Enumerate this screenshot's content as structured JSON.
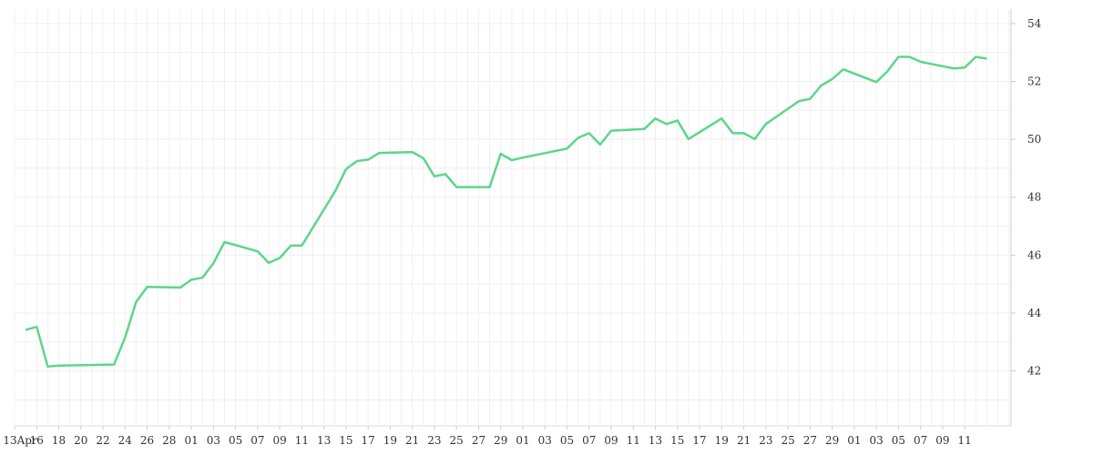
{
  "chart_data": {
    "type": "line",
    "title": "",
    "xlabel": "",
    "ylabel": "",
    "ylim": [
      40.1,
      54.5
    ],
    "y_ticks": [
      42,
      44,
      46,
      48,
      50,
      52,
      54
    ],
    "y_axis_position": "right",
    "grid": true,
    "legend": "none",
    "line_color": "#5cd68a",
    "x_tick_labels": [
      "13Apr",
      "16",
      "18",
      "20",
      "22",
      "24",
      "26",
      "28",
      "01",
      "03",
      "05",
      "07",
      "09",
      "11",
      "13",
      "15",
      "17",
      "19",
      "21",
      "23",
      "25",
      "27",
      "29",
      "01",
      "03",
      "05",
      "07",
      "09",
      "11",
      "13",
      "15",
      "17",
      "19",
      "21",
      "23",
      "25",
      "27",
      "29",
      "01",
      "03",
      "05",
      "07",
      "09",
      "11"
    ],
    "x": [
      "2025-04-14",
      "2025-04-15",
      "2025-04-16",
      "2025-04-17",
      "2025-04-22",
      "2025-04-23",
      "2025-04-24",
      "2025-04-25",
      "2025-04-28",
      "2025-04-29",
      "2025-04-30",
      "2025-05-01",
      "2025-05-02",
      "2025-05-05",
      "2025-05-06",
      "2025-05-07",
      "2025-05-08",
      "2025-05-09",
      "2025-05-12",
      "2025-05-13",
      "2025-05-14",
      "2025-05-15",
      "2025-05-16",
      "2025-05-19",
      "2025-05-20",
      "2025-05-21",
      "2025-05-22",
      "2025-05-23",
      "2025-05-26",
      "2025-05-27",
      "2025-05-28",
      "2025-05-29",
      "2025-06-02",
      "2025-06-03",
      "2025-06-04",
      "2025-06-05",
      "2025-06-06",
      "2025-06-09",
      "2025-06-10",
      "2025-06-11",
      "2025-06-12",
      "2025-06-13",
      "2025-06-16",
      "2025-06-17",
      "2025-06-18",
      "2025-06-19",
      "2025-06-20",
      "2025-06-23",
      "2025-06-24",
      "2025-06-25",
      "2025-06-26",
      "2025-06-27",
      "2025-06-30",
      "2025-07-01",
      "2025-07-02",
      "2025-07-03",
      "2025-07-04",
      "2025-07-07",
      "2025-07-08",
      "2025-07-09",
      "2025-07-10"
    ],
    "values": [
      43.42,
      43.52,
      42.15,
      42.18,
      42.22,
      43.15,
      44.38,
      44.9,
      44.88,
      45.15,
      45.22,
      45.72,
      46.45,
      46.13,
      45.73,
      45.9,
      46.33,
      46.33,
      48.2,
      48.97,
      49.25,
      49.3,
      49.53,
      49.56,
      49.35,
      48.72,
      48.8,
      48.35,
      48.35,
      49.5,
      49.28,
      49.37,
      49.68,
      50.05,
      50.21,
      49.82,
      50.3,
      50.36,
      50.72,
      50.53,
      50.65,
      50.01,
      50.72,
      50.21,
      50.21,
      50.01,
      50.53,
      51.32,
      51.4,
      51.86,
      52.08,
      52.42,
      51.98,
      52.35,
      52.85,
      52.85,
      52.68,
      52.45,
      52.48,
      52.85,
      52.79
    ]
  }
}
